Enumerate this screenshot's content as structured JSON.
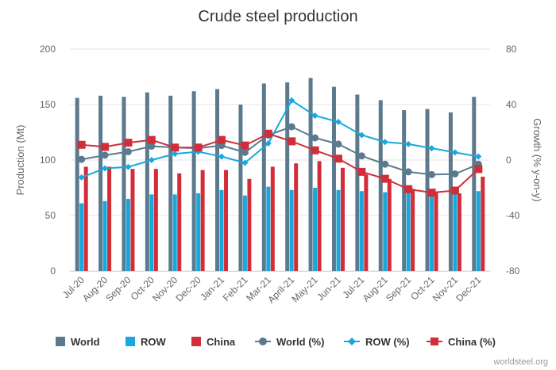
{
  "chart_data": {
    "type": "bar",
    "title": "Crude steel production",
    "categories": [
      "Jul-20",
      "Aug-20",
      "Sep-20",
      "Oct-20",
      "Nov-20",
      "Dec-20",
      "Jan-21",
      "Feb-21",
      "Mar-21",
      "April-21",
      "May-21",
      "Jun-21",
      "Jul-21",
      "Aug-21",
      "Sep-21",
      "Oct-21",
      "Nov-21",
      "Dec-21"
    ],
    "y_left": {
      "label": "Production (Mt)",
      "min": 0,
      "max": 200,
      "ticks": [
        0,
        50,
        100,
        150,
        200
      ]
    },
    "y_right": {
      "label": "Growth (% y-on-y)",
      "min": -80,
      "max": 80,
      "ticks": [
        -80,
        -40,
        0,
        40,
        80
      ]
    },
    "grid": true,
    "legend_position": "bottom",
    "series": [
      {
        "name": "World",
        "type": "bar",
        "axis": "left",
        "color": "#5b7a8e",
        "values": [
          156,
          158,
          157,
          161,
          158,
          162,
          164,
          150,
          169,
          170,
          174,
          166,
          159,
          154,
          145,
          146,
          143,
          157
        ]
      },
      {
        "name": "ROW",
        "type": "bar",
        "axis": "left",
        "color": "#19a8dc",
        "values": [
          61,
          63,
          65,
          69,
          69,
          70,
          73,
          68,
          76,
          73,
          75,
          73,
          72,
          71,
          72,
          70,
          72,
          72
        ]
      },
      {
        "name": "China",
        "type": "bar",
        "axis": "left",
        "color": "#d12e3a",
        "values": [
          94,
          94,
          92,
          92,
          88,
          91,
          91,
          83,
          94,
          97,
          99,
          93,
          87,
          83,
          74,
          71,
          70,
          85
        ]
      },
      {
        "name": "World (%)",
        "type": "line",
        "axis": "right",
        "color": "#5b7a8e",
        "marker": "circle",
        "values": [
          0.5,
          3.5,
          6,
          10,
          9,
          8.5,
          10.5,
          5.5,
          18,
          24,
          16,
          11.5,
          3,
          -3,
          -8.5,
          -10.5,
          -10,
          -3
        ]
      },
      {
        "name": "ROW (%)",
        "type": "line",
        "axis": "right",
        "color": "#19a8dc",
        "marker": "diamond",
        "values": [
          -12.5,
          -6,
          -5,
          0,
          4.5,
          6,
          2.5,
          -2,
          12,
          43,
          32,
          27.5,
          18,
          13,
          11.5,
          8.5,
          5.5,
          2.5
        ]
      },
      {
        "name": "China (%)",
        "type": "line",
        "axis": "right",
        "color": "#d12e3a",
        "marker": "square",
        "values": [
          11,
          9.5,
          12.5,
          14.5,
          9,
          9,
          14.5,
          10.5,
          19,
          13.5,
          7,
          1,
          -8.5,
          -13.5,
          -21,
          -23.5,
          -22,
          -6.5
        ]
      }
    ]
  },
  "credit": "worldsteel.org"
}
